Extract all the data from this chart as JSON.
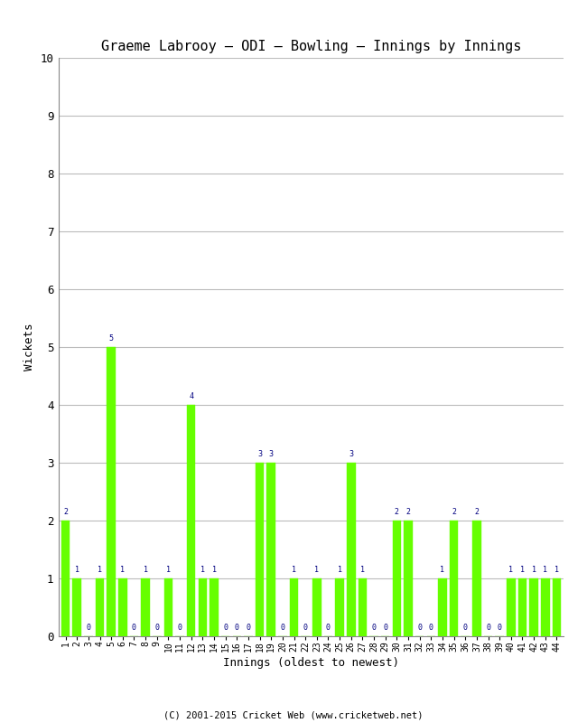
{
  "title": "Graeme Labrooy – ODI – Bowling – Innings by Innings",
  "xlabel": "Innings (oldest to newest)",
  "ylabel": "Wickets",
  "bar_color": "#66ff00",
  "bar_edge_color": "#66ff00",
  "label_color": "#000080",
  "background_color": "#ffffff",
  "grid_color": "#bbbbbb",
  "ylim": [
    0,
    10
  ],
  "yticks": [
    0,
    1,
    2,
    3,
    4,
    5,
    6,
    7,
    8,
    9,
    10
  ],
  "footer": "(C) 2001-2015 Cricket Web (www.cricketweb.net)",
  "innings": [
    1,
    2,
    3,
    4,
    5,
    6,
    7,
    8,
    9,
    10,
    11,
    12,
    13,
    14,
    15,
    16,
    17,
    18,
    19,
    20,
    21,
    22,
    23,
    24,
    25,
    26,
    27,
    28,
    29,
    30,
    31,
    32,
    33,
    34,
    35,
    36,
    37,
    38,
    39,
    40,
    41,
    42,
    43,
    44
  ],
  "wickets": [
    2,
    1,
    0,
    1,
    5,
    1,
    0,
    1,
    0,
    1,
    0,
    4,
    1,
    1,
    0,
    0,
    0,
    3,
    3,
    0,
    1,
    0,
    1,
    0,
    1,
    3,
    1,
    0,
    0,
    2,
    2,
    0,
    0,
    1,
    2,
    0,
    2,
    0,
    0,
    1,
    1,
    1,
    1,
    1
  ]
}
